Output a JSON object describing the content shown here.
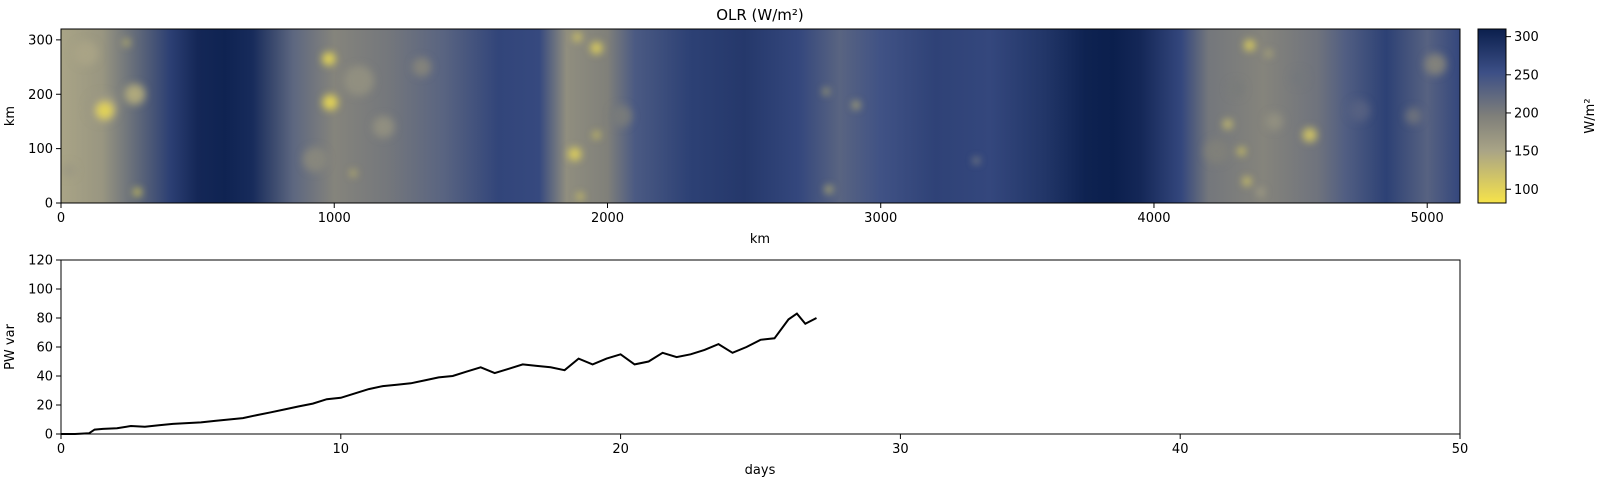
{
  "colors": {
    "cmap_high": "#0b1f4d",
    "cmap_mid": "#7f7f7a",
    "cmap_low": "#f6e34a",
    "line": "#000000"
  },
  "chart_data": [
    {
      "type": "heatmap",
      "title": "OLR (W/m²)",
      "xlabel": "km",
      "ylabel": "km",
      "xlim": [
        0,
        5120
      ],
      "ylim": [
        0,
        320
      ],
      "xticks": [
        0,
        1000,
        2000,
        3000,
        4000,
        5000
      ],
      "yticks": [
        0,
        100,
        200,
        300
      ],
      "colorbar": {
        "label": "W/m²",
        "range": [
          82,
          310
        ],
        "ticks": [
          100,
          150,
          200,
          250,
          300
        ]
      },
      "background_profile": {
        "x": [
          0,
          150,
          400,
          500,
          600,
          700,
          850,
          1000,
          1200,
          1400,
          1600,
          1750,
          1850,
          2000,
          2100,
          2300,
          2500,
          2700,
          2850,
          3000,
          3200,
          3400,
          3600,
          3750,
          3850,
          3950,
          4100,
          4200,
          4400,
          4600,
          4700,
          4850,
          5000,
          5120
        ],
        "olr": [
          150,
          168,
          272,
          300,
          305,
          296,
          225,
          190,
          205,
          228,
          265,
          260,
          178,
          195,
          240,
          270,
          280,
          262,
          228,
          250,
          268,
          262,
          283,
          306,
          310,
          300,
          262,
          205,
          190,
          210,
          235,
          270,
          230,
          262
        ]
      },
      "cells": [
        {
          "x": 90,
          "y": 275,
          "r": 45,
          "olr": 150
        },
        {
          "x": 150,
          "y": 175,
          "r": 55,
          "olr": 165
        },
        {
          "x": 160,
          "y": 170,
          "r": 32,
          "olr": 95
        },
        {
          "x": 270,
          "y": 200,
          "r": 38,
          "olr": 140
        },
        {
          "x": 240,
          "y": 295,
          "r": 12,
          "olr": 110
        },
        {
          "x": 280,
          "y": 20,
          "r": 14,
          "olr": 90
        },
        {
          "x": 30,
          "y": 60,
          "r": 25,
          "olr": 165
        },
        {
          "x": 980,
          "y": 265,
          "r": 24,
          "olr": 90
        },
        {
          "x": 985,
          "y": 185,
          "r": 28,
          "olr": 92
        },
        {
          "x": 1090,
          "y": 225,
          "r": 55,
          "olr": 175
        },
        {
          "x": 1070,
          "y": 55,
          "r": 10,
          "olr": 110
        },
        {
          "x": 1180,
          "y": 140,
          "r": 40,
          "olr": 175
        },
        {
          "x": 930,
          "y": 80,
          "r": 45,
          "olr": 185
        },
        {
          "x": 1320,
          "y": 250,
          "r": 35,
          "olr": 190
        },
        {
          "x": 1890,
          "y": 305,
          "r": 16,
          "olr": 105
        },
        {
          "x": 1960,
          "y": 285,
          "r": 22,
          "olr": 100
        },
        {
          "x": 1880,
          "y": 90,
          "r": 24,
          "olr": 100
        },
        {
          "x": 1960,
          "y": 125,
          "r": 12,
          "olr": 95
        },
        {
          "x": 1900,
          "y": 12,
          "r": 12,
          "olr": 95
        },
        {
          "x": 2050,
          "y": 160,
          "r": 40,
          "olr": 200
        },
        {
          "x": 2800,
          "y": 205,
          "r": 10,
          "olr": 115
        },
        {
          "x": 2910,
          "y": 180,
          "r": 14,
          "olr": 125
        },
        {
          "x": 2810,
          "y": 25,
          "r": 14,
          "olr": 120
        },
        {
          "x": 3350,
          "y": 78,
          "r": 6,
          "olr": 150
        },
        {
          "x": 4350,
          "y": 290,
          "r": 20,
          "olr": 100
        },
        {
          "x": 4420,
          "y": 275,
          "r": 12,
          "olr": 130
        },
        {
          "x": 4570,
          "y": 125,
          "r": 26,
          "olr": 110
        },
        {
          "x": 4270,
          "y": 145,
          "r": 18,
          "olr": 120
        },
        {
          "x": 4320,
          "y": 95,
          "r": 14,
          "olr": 100
        },
        {
          "x": 4340,
          "y": 40,
          "r": 16,
          "olr": 110
        },
        {
          "x": 4440,
          "y": 150,
          "r": 32,
          "olr": 175
        },
        {
          "x": 4230,
          "y": 95,
          "r": 45,
          "olr": 195
        },
        {
          "x": 4300,
          "y": 210,
          "r": 30,
          "olr": 200
        },
        {
          "x": 4530,
          "y": 230,
          "r": 28,
          "olr": 205
        },
        {
          "x": 4390,
          "y": 20,
          "r": 14,
          "olr": 150
        },
        {
          "x": 4750,
          "y": 170,
          "r": 40,
          "olr": 230
        },
        {
          "x": 5030,
          "y": 255,
          "r": 40,
          "olr": 190
        },
        {
          "x": 4950,
          "y": 160,
          "r": 30,
          "olr": 210
        }
      ]
    },
    {
      "type": "line",
      "title": "",
      "xlabel": "days",
      "ylabel": "PW var",
      "xlim": [
        0,
        50
      ],
      "ylim": [
        0,
        120
      ],
      "xticks": [
        0,
        10,
        20,
        30,
        40,
        50
      ],
      "yticks": [
        0,
        20,
        40,
        60,
        80,
        100,
        120
      ],
      "x": [
        0,
        0.5,
        1.0,
        1.2,
        1.5,
        2.0,
        2.5,
        3.0,
        3.5,
        4.0,
        4.5,
        5.0,
        5.5,
        6.0,
        6.5,
        7.0,
        7.5,
        8.0,
        8.5,
        9.0,
        9.5,
        10.0,
        10.5,
        11.0,
        11.5,
        12.0,
        12.5,
        13.0,
        13.5,
        14.0,
        14.5,
        15.0,
        15.5,
        16.0,
        16.5,
        17.0,
        17.5,
        18.0,
        18.5,
        19.0,
        19.5,
        20.0,
        20.5,
        21.0,
        21.5,
        22.0,
        22.5,
        23.0,
        23.5,
        24.0,
        24.5,
        25.0,
        25.5,
        26.0,
        26.3,
        26.6,
        27.0
      ],
      "y": [
        0,
        0,
        0.5,
        3,
        3.5,
        4,
        5.5,
        5,
        6,
        7,
        7.5,
        8,
        9,
        10,
        11,
        13,
        15,
        17,
        19,
        21,
        24,
        25,
        28,
        31,
        33,
        34,
        35,
        37,
        39,
        40,
        43,
        46,
        42,
        45,
        48,
        47,
        46,
        44,
        52,
        48,
        52,
        55,
        48,
        50,
        56,
        53,
        55,
        58,
        62,
        56,
        60,
        65,
        66,
        79,
        83,
        76,
        80
      ],
      "color": "#000000"
    }
  ]
}
